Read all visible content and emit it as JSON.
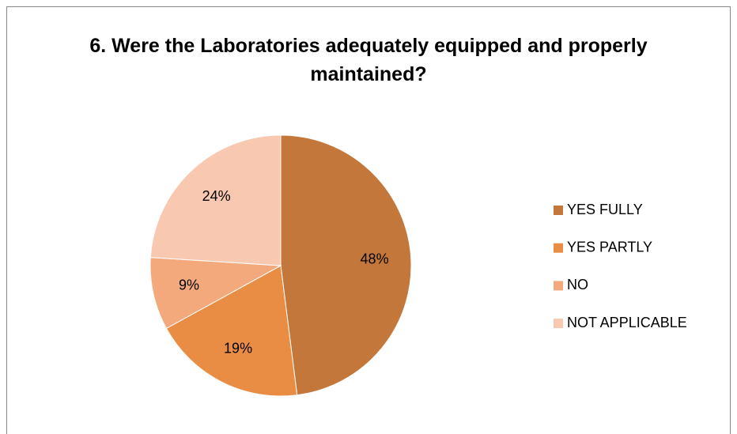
{
  "chart_data": {
    "type": "pie",
    "title": "6. Were the Laboratories adequately equipped and properly maintained?",
    "categories": [
      "YES FULLY",
      "YES PARTLY",
      "NO",
      "NOT APPLICABLE"
    ],
    "values": [
      48,
      19,
      9,
      24
    ],
    "value_labels": [
      "48%",
      "19%",
      "9%",
      "24%"
    ],
    "colors": [
      "#c4773a",
      "#e98d44",
      "#f3a97c",
      "#f8c9b0"
    ],
    "legend": "right"
  }
}
